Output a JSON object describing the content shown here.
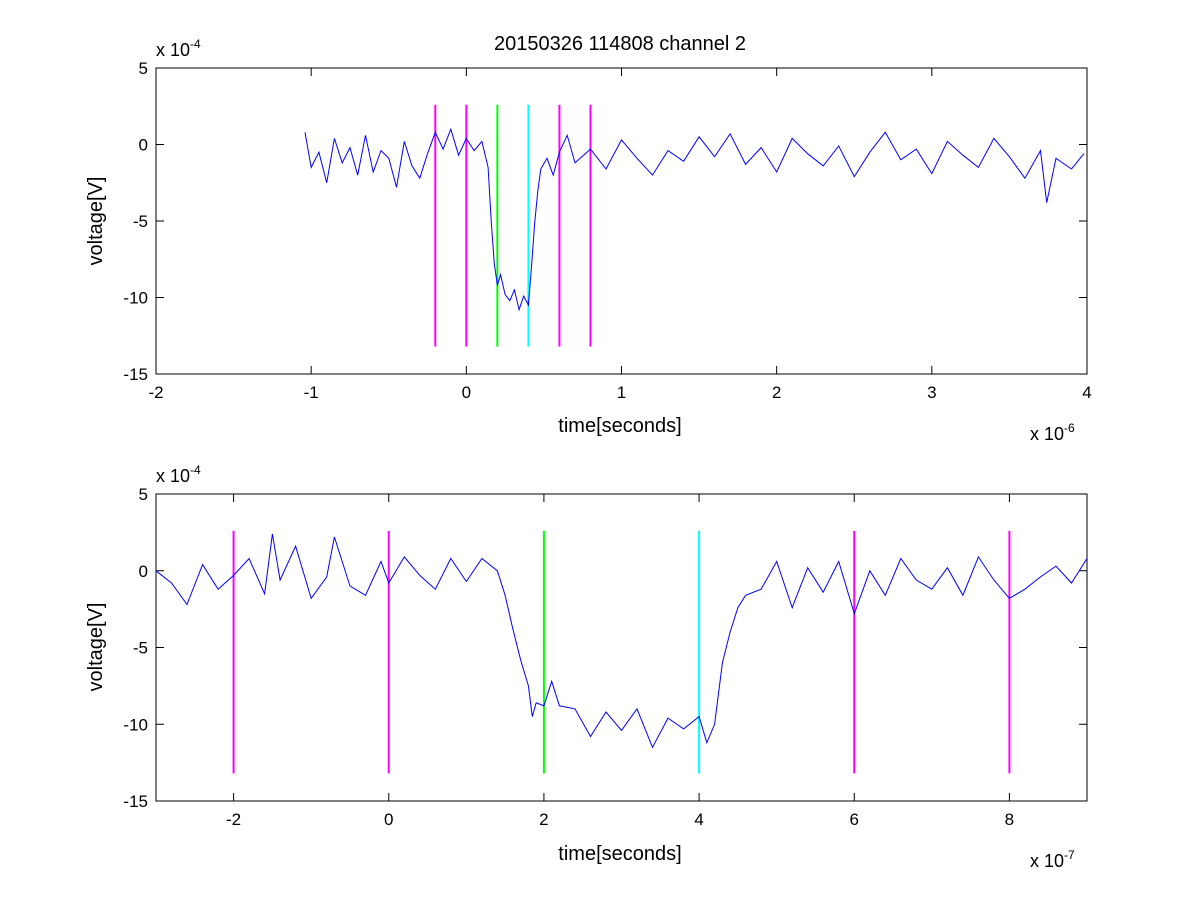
{
  "chart_data": [
    {
      "type": "line",
      "title": "20150326 114808 channel 2",
      "xlabel": "time[seconds]",
      "ylabel": "voltage[V]",
      "x_exponent_label": "x 10",
      "x_exponent": "-6",
      "y_exponent_label": "x 10",
      "y_exponent": "-4",
      "xlim": [
        -2,
        4
      ],
      "ylim": [
        -15,
        5
      ],
      "x_ticks": [
        -2,
        -1,
        0,
        1,
        2,
        3,
        4
      ],
      "y_ticks": [
        -15,
        -10,
        -5,
        0,
        5
      ],
      "grid": false,
      "series": [
        {
          "color": "#0000ff",
          "x": [
            -1.04,
            -1.0,
            -0.95,
            -0.9,
            -0.85,
            -0.8,
            -0.75,
            -0.7,
            -0.65,
            -0.6,
            -0.55,
            -0.5,
            -0.45,
            -0.4,
            -0.35,
            -0.3,
            -0.25,
            -0.2,
            -0.15,
            -0.1,
            -0.05,
            0.0,
            0.05,
            0.1,
            0.14,
            0.16,
            0.18,
            0.2,
            0.22,
            0.25,
            0.28,
            0.31,
            0.34,
            0.37,
            0.4,
            0.42,
            0.44,
            0.46,
            0.48,
            0.52,
            0.56,
            0.6,
            0.65,
            0.7,
            0.8,
            0.9,
            1.0,
            1.1,
            1.2,
            1.3,
            1.4,
            1.5,
            1.6,
            1.7,
            1.8,
            1.9,
            2.0,
            2.1,
            2.2,
            2.3,
            2.4,
            2.5,
            2.6,
            2.7,
            2.8,
            2.9,
            3.0,
            3.1,
            3.2,
            3.3,
            3.4,
            3.5,
            3.6,
            3.7,
            3.74,
            3.8,
            3.9,
            3.98
          ],
          "y": [
            0.8,
            -1.5,
            -0.5,
            -2.5,
            0.4,
            -1.2,
            -0.2,
            -2.0,
            0.6,
            -1.8,
            -0.4,
            -0.9,
            -2.8,
            0.2,
            -1.4,
            -2.2,
            -0.6,
            0.8,
            -0.3,
            1.0,
            -0.7,
            0.4,
            -0.4,
            0.2,
            -1.5,
            -5.0,
            -7.8,
            -9.2,
            -8.5,
            -9.8,
            -10.2,
            -9.5,
            -10.8,
            -9.9,
            -10.5,
            -8.0,
            -5.2,
            -3.1,
            -1.6,
            -0.9,
            -2.0,
            -0.5,
            0.6,
            -1.2,
            -0.3,
            -1.6,
            0.3,
            -0.9,
            -2.0,
            -0.4,
            -1.1,
            0.5,
            -0.8,
            0.7,
            -1.3,
            -0.2,
            -1.8,
            0.4,
            -0.6,
            -1.4,
            -0.1,
            -2.1,
            -0.5,
            0.8,
            -1.0,
            -0.3,
            -1.9,
            0.2,
            -0.7,
            -1.5,
            0.4,
            -0.8,
            -2.2,
            -0.4,
            -3.8,
            -0.9,
            -1.6,
            -0.6
          ]
        }
      ],
      "markers": [
        {
          "x": 0.2,
          "color": "#ff00ff",
          "y_range": [
            -13.2,
            2.6
          ]
        },
        {
          "x": 0.0,
          "color": "#ff00ff",
          "y_range": [
            -13.2,
            2.6
          ]
        },
        {
          "x": 0.2,
          "color": "#00ff00",
          "y_range": [
            -13.2,
            2.6
          ]
        },
        {
          "x": 0.4,
          "color": "#00ffff",
          "y_range": [
            -13.2,
            2.6
          ]
        },
        {
          "x": 0.6,
          "color": "#ff00ff",
          "y_range": [
            -13.2,
            2.6
          ]
        },
        {
          "x": 0.8,
          "color": "#ff00ff",
          "y_range": [
            -13.2,
            2.6
          ]
        }
      ]
    },
    {
      "type": "line",
      "xlabel": "time[seconds]",
      "ylabel": "voltage[V]",
      "x_exponent_label": "x 10",
      "x_exponent": "-7",
      "y_exponent_label": "x 10",
      "y_exponent": "-4",
      "xlim": [
        -3,
        9
      ],
      "ylim": [
        -15,
        5
      ],
      "x_ticks": [
        -2,
        0,
        2,
        4,
        6,
        8
      ],
      "y_ticks": [
        -15,
        -10,
        -5,
        0,
        5
      ],
      "grid": false,
      "series": [
        {
          "color": "#0000ff",
          "x": [
            -3.0,
            -2.8,
            -2.6,
            -2.4,
            -2.2,
            -2.0,
            -1.8,
            -1.6,
            -1.5,
            -1.4,
            -1.2,
            -1.0,
            -0.8,
            -0.7,
            -0.5,
            -0.3,
            -0.1,
            0.0,
            0.2,
            0.4,
            0.6,
            0.8,
            1.0,
            1.2,
            1.4,
            1.5,
            1.6,
            1.7,
            1.8,
            1.85,
            1.9,
            2.0,
            2.1,
            2.2,
            2.4,
            2.6,
            2.8,
            3.0,
            3.2,
            3.4,
            3.6,
            3.8,
            4.0,
            4.1,
            4.2,
            4.3,
            4.4,
            4.5,
            4.6,
            4.8,
            5.0,
            5.2,
            5.4,
            5.6,
            5.8,
            6.0,
            6.2,
            6.4,
            6.6,
            6.8,
            7.0,
            7.2,
            7.4,
            7.6,
            7.8,
            8.0,
            8.2,
            8.4,
            8.6,
            8.8,
            9.0
          ],
          "y": [
            0.0,
            -0.8,
            -2.2,
            0.4,
            -1.2,
            -0.3,
            0.8,
            -1.5,
            2.4,
            -0.6,
            1.6,
            -1.8,
            -0.4,
            2.2,
            -1.0,
            -1.6,
            0.6,
            -0.8,
            0.9,
            -0.3,
            -1.2,
            0.8,
            -0.7,
            0.8,
            0.0,
            -1.6,
            -3.8,
            -5.8,
            -7.5,
            -9.5,
            -8.6,
            -8.8,
            -7.2,
            -8.8,
            -9.0,
            -10.8,
            -9.2,
            -10.4,
            -9.0,
            -11.5,
            -9.6,
            -10.3,
            -9.5,
            -11.2,
            -10.0,
            -6.0,
            -4.0,
            -2.4,
            -1.6,
            -1.2,
            0.6,
            -2.4,
            0.2,
            -1.4,
            0.6,
            -2.8,
            0.0,
            -1.6,
            0.8,
            -0.6,
            -1.2,
            0.2,
            -1.6,
            0.9,
            -0.6,
            -1.8,
            -1.2,
            -0.4,
            0.3,
            -0.8,
            0.8
          ]
        }
      ],
      "markers": [
        {
          "x": -2,
          "color": "#ff00ff",
          "y_range": [
            -13.2,
            2.6
          ]
        },
        {
          "x": 0,
          "color": "#ff00ff",
          "y_range": [
            -13.2,
            2.6
          ]
        },
        {
          "x": 2,
          "color": "#00ff00",
          "y_range": [
            -13.2,
            2.6
          ]
        },
        {
          "x": 4,
          "color": "#00ffff",
          "y_range": [
            -13.2,
            2.6
          ]
        },
        {
          "x": 6,
          "color": "#ff00ff",
          "y_range": [
            -13.2,
            2.6
          ]
        },
        {
          "x": 8,
          "color": "#ff00ff",
          "y_range": [
            -13.2,
            2.6
          ]
        }
      ]
    }
  ]
}
